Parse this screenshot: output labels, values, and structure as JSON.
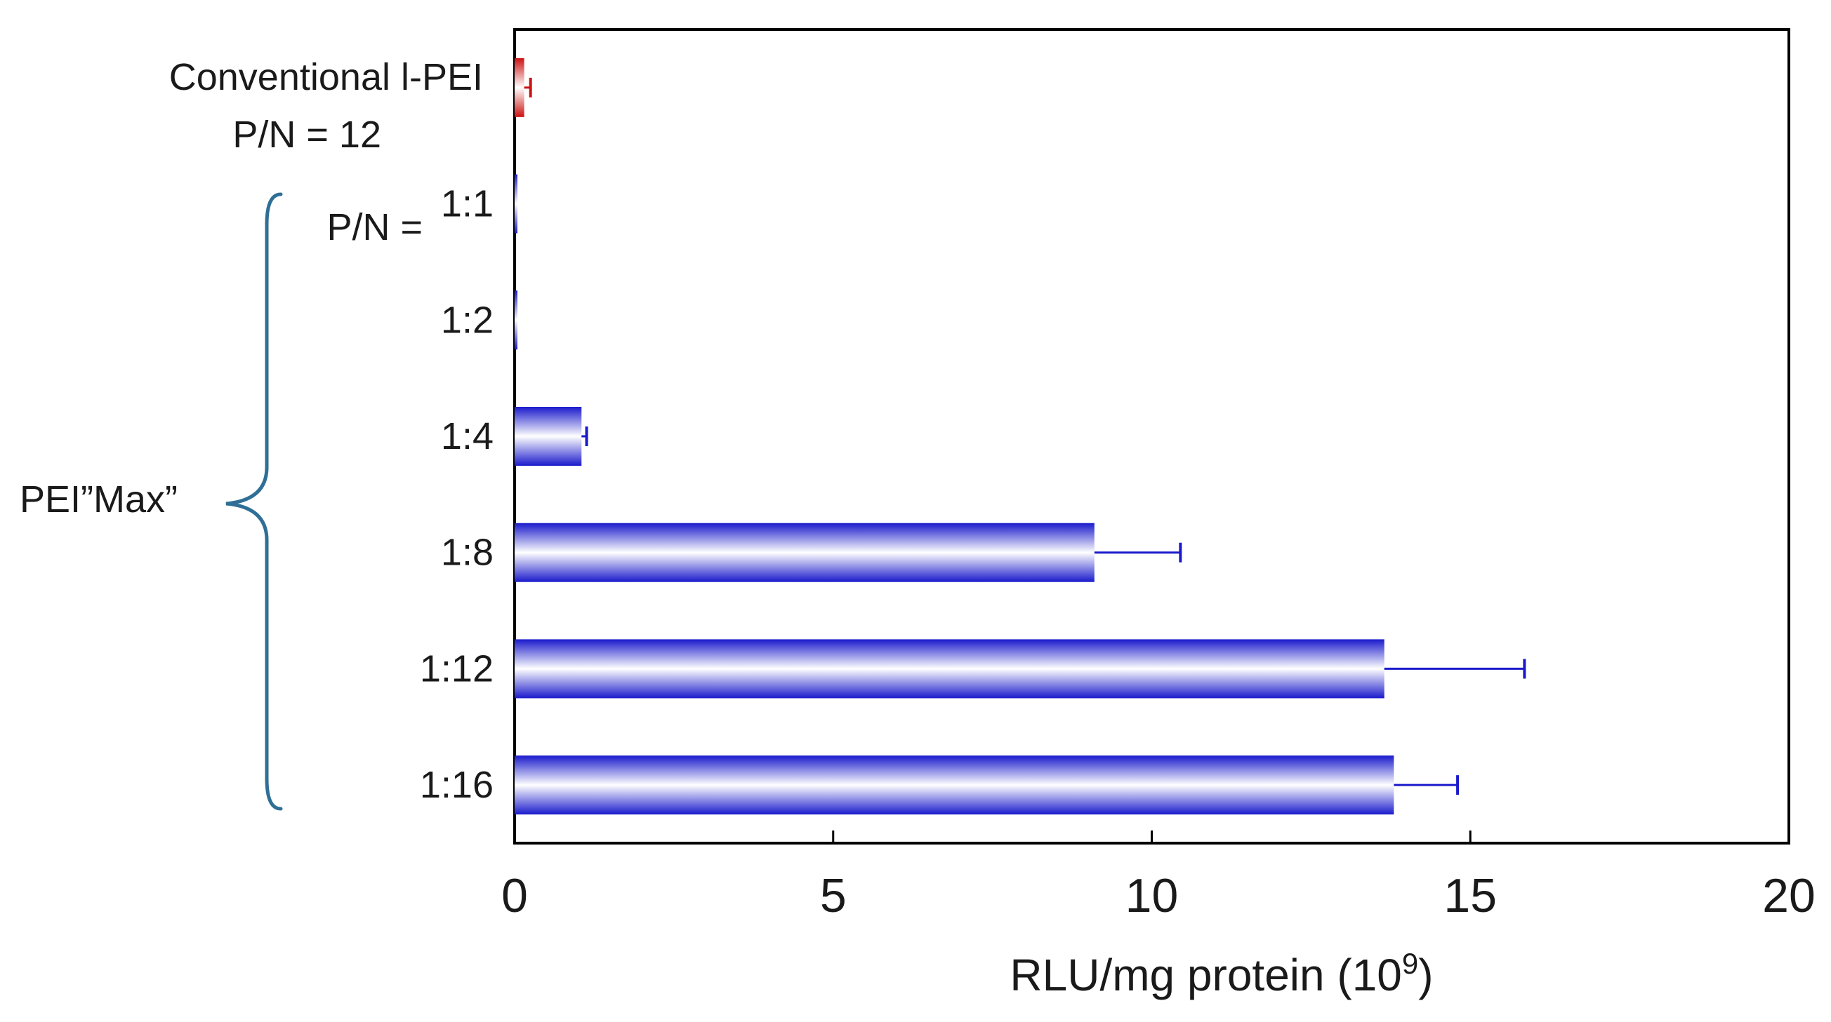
{
  "chart_data": {
    "type": "bar",
    "orientation": "horizontal",
    "categories": [
      "Conventional l-PEI",
      "1:1",
      "1:2",
      "1:4",
      "1:8",
      "1:12",
      "1:16"
    ],
    "labels": {
      "control_line1": "Conventional  l-PEI",
      "control_line2": "P/N = 12",
      "pn_prefix": "P/N = ",
      "group_label": "PEI”Max”"
    },
    "series": [
      {
        "values": [
          0.15,
          0.02,
          0.02,
          1.05,
          9.1,
          13.65,
          13.8
        ],
        "errors": [
          0.1,
          0.0,
          0.0,
          0.08,
          1.35,
          2.2,
          1.0
        ],
        "colors": [
          "#cc1111",
          "#1a1acc",
          "#1a1acc",
          "#1a1acc",
          "#1a1acc",
          "#1a1acc",
          "#1a1acc"
        ]
      }
    ],
    "xlim": [
      0,
      20
    ],
    "xticks": [
      "0",
      "5",
      "10",
      "15",
      "20"
    ],
    "xlabel": "RLU/mg protein (10",
    "xlabel_sup": "9",
    "xlabel_close": ")",
    "colors": {
      "bar": "#1a1acc",
      "control": "#cc1111",
      "brace": "#2f6f96"
    }
  }
}
